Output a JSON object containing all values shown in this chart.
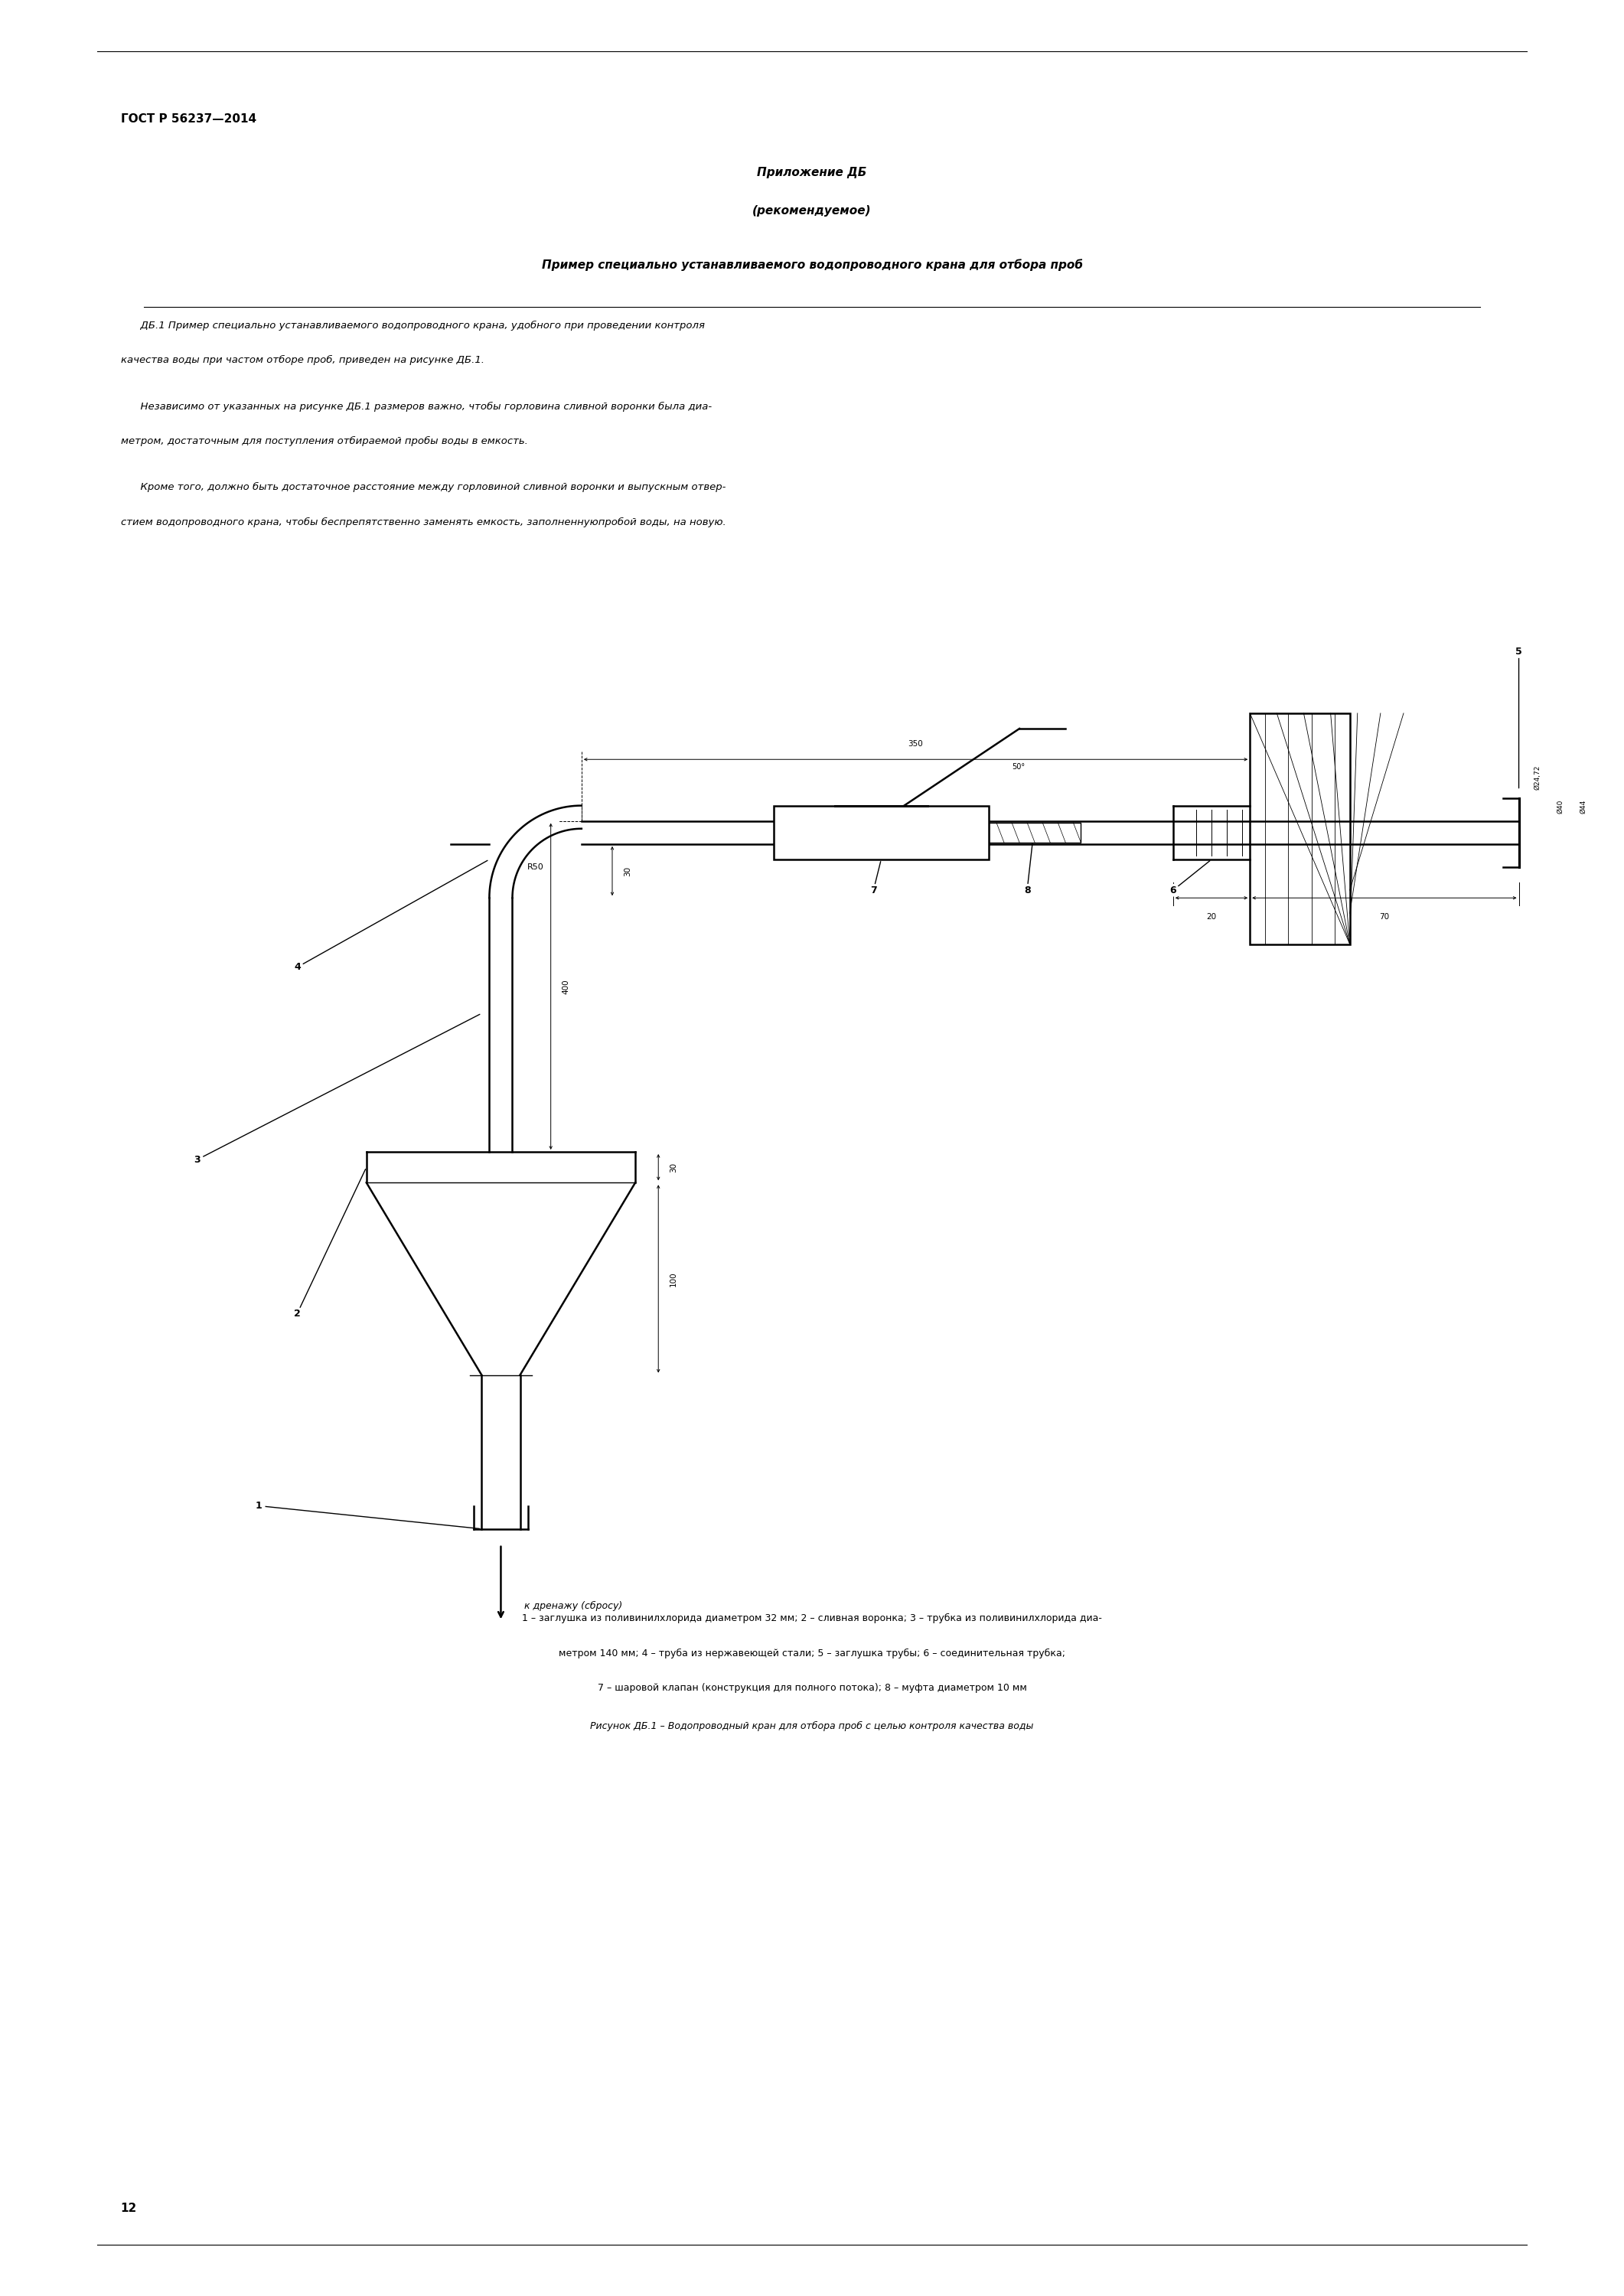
{
  "page_width": 21.22,
  "page_height": 30.0,
  "background_color": "#ffffff",
  "header_text": "ГОСТ Р 56237—2014",
  "appendix_title_line1": "Приложение ДБ",
  "appendix_title_line2": "(рекомендуемое)",
  "section_title": "Пример специально устанавливаемого водопроводного крана для отбора проб",
  "para1_line1": "      ДБ.1 Пример специально устанавливаемого водопроводного крана, удобного при проведении контроля",
  "para1_line2": "качества воды при частом отборе проб, приведен на рисунке ДБ.1.",
  "para2_line1": "      Независимо от указанных на рисунке ДБ.1 размеров важно, чтобы горловина сливной воронки была диа-",
  "para2_line2": "метром, достаточным для поступления отбираемой пробы воды в емкость.",
  "para3_line1": "      Кроме того, должно быть достаточное расстояние между горловиной сливной воронки и выпускным отвер-",
  "para3_line2": "стием водопроводного крана, чтобы беспрепятственно заменять емкость, заполненнуюпробой воды, на новую.",
  "caption_line1": "1 – заглушка из поливинилхлорида диаметром 32 мм; 2 – сливная воронка; 3 – трубка из поливинилхлорида диа-",
  "caption_line2": "метром 140 мм; 4 – труба из нержавеющей стали; 5 – заглушка трубы; 6 – соединительная трубка;",
  "caption_line3": "7 – шаровой клапан (конструкция для полного потока); 8 – муфта диаметром 10 мм",
  "figure_caption": "Рисунок ДБ.1 – Водопроводный кран для отбора проб с целью контроля качества воды",
  "page_number": "12",
  "drain_text": "к дренажу (сбросу)",
  "dim_350": "350",
  "dim_400": "400",
  "dim_30a": "30",
  "dim_30b": "30",
  "dim_100": "100",
  "dim_70": "70",
  "dim_20": "20",
  "dim_R50": "R50",
  "dim_50deg": "50°",
  "dim_d2472": "Ø24,72",
  "dim_d40": "Ø40",
  "dim_d44": "Ø44"
}
